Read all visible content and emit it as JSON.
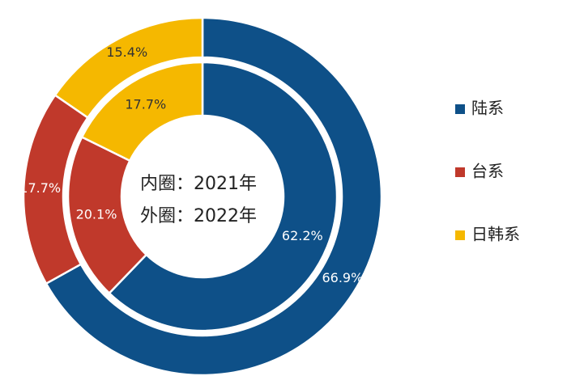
{
  "chart_data": {
    "type": "donut",
    "categories": [
      "陆系",
      "台系",
      "日韩系"
    ],
    "colors": [
      "#0e5088",
      "#c0392b",
      "#f5b800"
    ],
    "series": [
      {
        "values": [
          62.2,
          20.1,
          17.7
        ],
        "value_labels": [
          "62.2%",
          "20.1%",
          "17.7%"
        ]
      },
      {
        "values": [
          66.9,
          17.7,
          15.4
        ],
        "value_labels": [
          "66.9%",
          "17.7%",
          "15.4%"
        ]
      }
    ],
    "annotations": [
      "内圈：2021年",
      "外圈：2022年"
    ]
  }
}
